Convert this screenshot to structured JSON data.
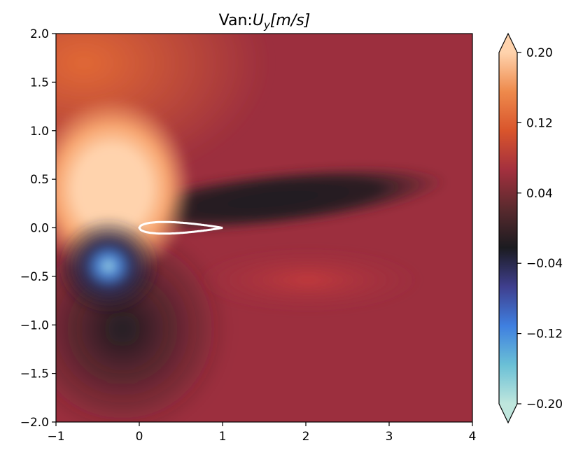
{
  "chart_data": {
    "type": "heatmap",
    "title_prefix": "Van:",
    "title_symbol": "U",
    "title_subscript": "y",
    "title_units": "[m/s]",
    "xlim": [
      -1,
      4
    ],
    "ylim": [
      -2,
      2
    ],
    "x_ticks": [
      -1,
      0,
      1,
      2,
      3,
      4
    ],
    "x_tick_labels": [
      "−1",
      "0",
      "1",
      "2",
      "3",
      "4"
    ],
    "y_ticks": [
      2.0,
      1.5,
      1.0,
      0.5,
      0.0,
      -0.5,
      -1.0,
      -1.5,
      -2.0
    ],
    "y_tick_labels": [
      "2.0",
      "1.5",
      "1.0",
      "0.5",
      "0.0",
      "−0.5",
      "−1.0",
      "−1.5",
      "−2.0"
    ],
    "colorbar": {
      "range": [
        -0.2,
        0.2
      ],
      "extend": "both",
      "ticks": [
        0.2,
        0.12,
        0.04,
        -0.04,
        -0.12,
        -0.2
      ],
      "tick_labels": [
        "0.20",
        "0.12",
        "0.04",
        "−0.04",
        "−0.12",
        "−0.20"
      ],
      "colormap": "icefire",
      "colors": [
        "#bfe6dd",
        "#6ac0d6",
        "#3f7fe0",
        "#3f3f8e",
        "#1b1b20",
        "#5a2a2e",
        "#a4303e",
        "#d9552c",
        "#ee8a4c",
        "#ffd3ad"
      ]
    },
    "field_features": [
      {
        "kind": "max",
        "x": -0.4,
        "y": 0.45,
        "value": 0.2
      },
      {
        "kind": "min",
        "x": -0.35,
        "y": -0.4,
        "value": -0.2
      },
      {
        "kind": "wake",
        "x": 2.5,
        "y": 0.3,
        "value": 0.0
      },
      {
        "kind": "lobe",
        "x": 2.0,
        "y": -0.55,
        "value": 0.1
      }
    ],
    "airfoil": {
      "leading_edge_x": 0.0,
      "trailing_edge_x": 1.0,
      "y": 0.0,
      "outline_color": "#ffffff"
    }
  }
}
